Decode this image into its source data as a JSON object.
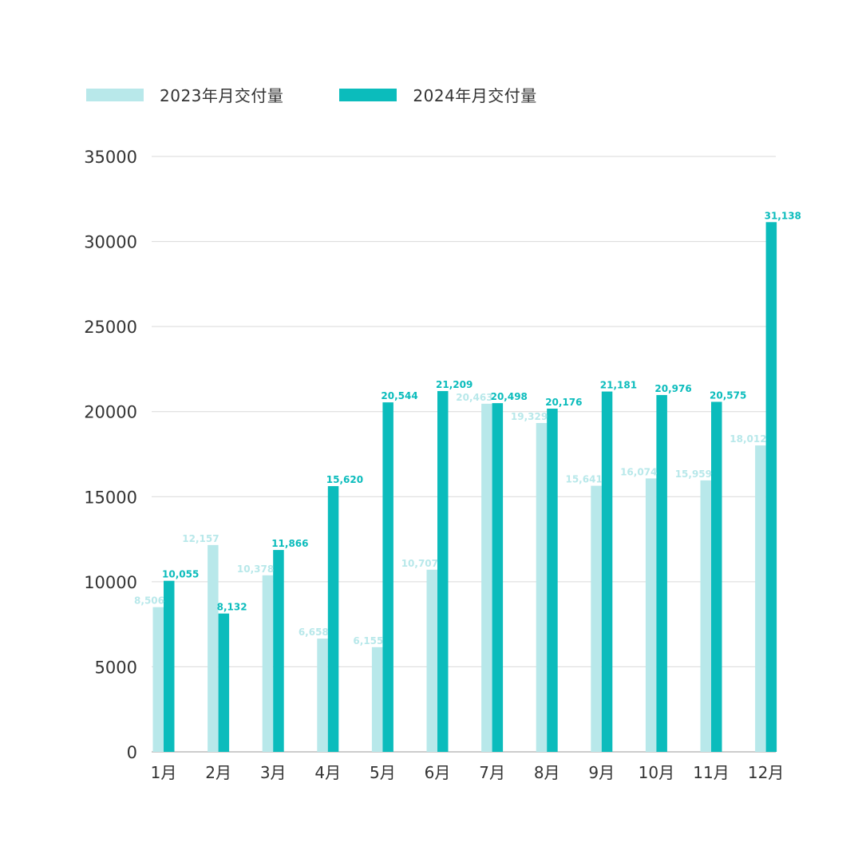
{
  "colors": {
    "s2023": "#b8e8ea",
    "s2024": "#0bbcbc",
    "grid": "#d9d9d9",
    "axis": "#999999",
    "text": "#333333"
  },
  "legend": [
    {
      "label": "2023年月交付量",
      "color": "#b8e8ea"
    },
    {
      "label": "2024年月交付量",
      "color": "#0bbcbc"
    }
  ],
  "chart_data": {
    "type": "bar",
    "categories": [
      "1月",
      "2月",
      "3月",
      "4月",
      "5月",
      "6月",
      "7月",
      "8月",
      "9月",
      "10月",
      "11月",
      "12月"
    ],
    "series": [
      {
        "name": "2023年月交付量",
        "values": [
          8506,
          12157,
          10378,
          6658,
          6155,
          10707,
          20463,
          19329,
          15641,
          16074,
          15959,
          18012
        ],
        "labels": [
          "8,506",
          "12,157",
          "10,378",
          "6,658",
          "6,155",
          "10,707",
          "20,463",
          "19,329",
          "15,641",
          "16,074",
          "15,959",
          "18,012"
        ]
      },
      {
        "name": "2024年月交付量",
        "values": [
          10055,
          8132,
          11866,
          15620,
          20544,
          21209,
          20498,
          20176,
          21181,
          20976,
          20575,
          31138
        ],
        "labels": [
          "10,055",
          "8,132",
          "11,866",
          "15,620",
          "20,544",
          "21,209",
          "20,498",
          "20,176",
          "21,181",
          "20,976",
          "20,575",
          "31,138"
        ]
      }
    ],
    "yticks": [
      0,
      5000,
      10000,
      15000,
      20000,
      25000,
      30000,
      35000
    ],
    "ylim": [
      0,
      35000
    ],
    "grid": true,
    "legend_position": "top-left"
  }
}
